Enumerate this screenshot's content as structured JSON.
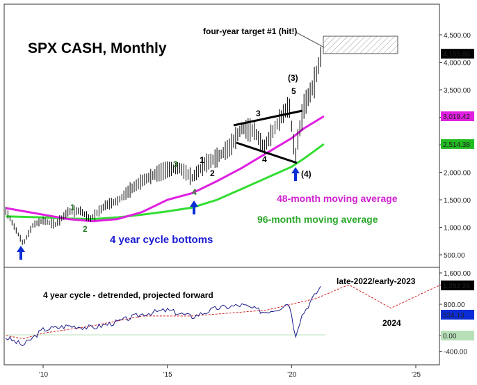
{
  "chart_data": [
    {
      "type": "line",
      "title": "SPX CASH, Monthly",
      "xlabel": "",
      "ylabel": "",
      "x_ticks": [
        "'10",
        "'15",
        "'20",
        "'25"
      ],
      "y_ticks": [
        "4,500.00",
        "4,000.00",
        "3,500.00",
        "3,000.00",
        "2,500.00",
        "2,000.00",
        "1,500.00",
        "1,000.00",
        "500.00"
      ],
      "ylim": [
        300,
        4750
      ],
      "grid": false,
      "series": [
        {
          "name": "SPX CASH",
          "x": [
            2008.5,
            2009.2,
            2009.6,
            2010.0,
            2010.5,
            2011.0,
            2011.5,
            2011.9,
            2012.5,
            2013.0,
            2013.5,
            2014.0,
            2014.5,
            2015.0,
            2015.5,
            2016.0,
            2016.5,
            2017.0,
            2017.5,
            2018.0,
            2018.5,
            2018.9,
            2019.5,
            2019.9,
            2020.15,
            2020.25,
            2020.5,
            2020.9,
            2021.2
          ],
          "values": [
            1300,
            700,
            1050,
            1120,
            1050,
            1280,
            1300,
            1150,
            1400,
            1480,
            1680,
            1850,
            1960,
            2050,
            2080,
            1900,
            2150,
            2270,
            2450,
            2800,
            2750,
            2450,
            2950,
            3230,
            2250,
            2600,
            3200,
            3600,
            4160
          ]
        },
        {
          "name": "48-month moving average",
          "x": [
            2008.5,
            2010,
            2011,
            2012,
            2013,
            2014,
            2015,
            2016,
            2017,
            2018,
            2019,
            2020,
            2020.5,
            2021.3
          ],
          "values": [
            1350,
            1230,
            1150,
            1110,
            1150,
            1280,
            1500,
            1620,
            1840,
            2080,
            2350,
            2620,
            2800,
            3019
          ]
        },
        {
          "name": "96-month moving average",
          "x": [
            2008.5,
            2010,
            2011,
            2012,
            2013,
            2014,
            2015,
            2016,
            2017,
            2018,
            2019,
            2020,
            2020.5,
            2021.3
          ],
          "values": [
            1200,
            1180,
            1160,
            1150,
            1180,
            1230,
            1290,
            1360,
            1500,
            1700,
            1900,
            2100,
            2250,
            2514
          ]
        }
      ],
      "last_value_labels": [
        {
          "text": "4,155.86",
          "value": 4155.86,
          "color": "#000000"
        },
        {
          "text": "3,019.42",
          "value": 3019.42,
          "color": "#e020e0"
        },
        {
          "text": "2,514.38",
          "value": 2514.38,
          "color": "#22bb22"
        }
      ],
      "annotations": {
        "target": "four-year target #1 (hit!)",
        "ma48": "48-month moving average",
        "ma96": "96-month moving average",
        "cycle_bottoms": "4 year cycle bottoms",
        "wave_labels": [
          "1",
          "2",
          "3",
          "4",
          "1",
          "2",
          "3",
          "4",
          "5",
          "(3)",
          "(4)"
        ]
      },
      "colors": {
        "ma48": "#e020e0",
        "ma96": "#33dd33",
        "arrows": "#0a2dd6",
        "wave_green": "#2a7a2a",
        "title_blue": "#1a1ad0",
        "label_magenta": "#d020d0",
        "label_green": "#2aa82a"
      }
    },
    {
      "type": "line",
      "title": "4 year cycle - detrended, projected forward",
      "xlabel": "",
      "ylabel": "",
      "y_ticks": [
        "1,600.00",
        "800.00",
        "0.00",
        "-400.00"
      ],
      "ylim": [
        -600,
        1800
      ],
      "series": [
        {
          "name": "detrended",
          "x": [
            2008.5,
            2009.2,
            2010,
            2011,
            2012,
            2013,
            2014,
            2015,
            2016,
            2017,
            2018,
            2018.9,
            2019.5,
            2019.9,
            2020.15,
            2020.4,
            2020.8,
            2021.2
          ],
          "values": [
            -50,
            -250,
            150,
            250,
            200,
            350,
            550,
            650,
            480,
            700,
            780,
            600,
            700,
            850,
            0,
            500,
            900,
            1282
          ]
        },
        {
          "name": "cycle",
          "x": [
            2008.5,
            2009.2,
            2010,
            2012,
            2014,
            2016,
            2018,
            2019,
            2020,
            2021,
            2022.3,
            2024.0,
            2025.5,
            2026.2
          ],
          "values": [
            0,
            -80,
            60,
            250,
            500,
            500,
            600,
            650,
            800,
            950,
            1300,
            700,
            1150,
            1350
          ]
        }
      ],
      "last_value_labels": [
        {
          "text": "1,282.26",
          "value": 1282.26,
          "color": "#000000"
        },
        {
          "text": "534.13",
          "value": 534.13,
          "color": "#0a2dd6"
        },
        {
          "text": "0.00",
          "value": 0,
          "color": "#b8e0b8"
        }
      ],
      "annotations": {
        "late": "late-2022/early-2023",
        "year": "2024"
      }
    }
  ]
}
